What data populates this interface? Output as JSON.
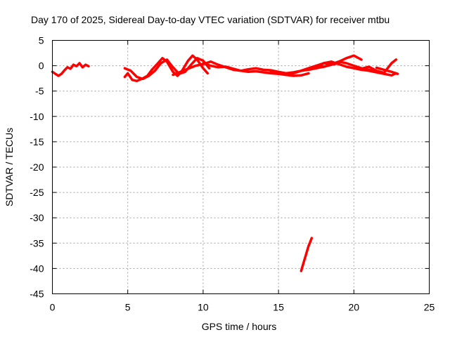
{
  "chart_data": {
    "type": "scatter",
    "title": "Day 170 of 2025, Sidereal Day-to-day VTEC variation (SDTVAR) for receiver mtbu",
    "xlabel": "GPS time / hours",
    "ylabel": "SDTVAR / TECUs",
    "xlim": [
      0,
      25
    ],
    "ylim": [
      -45,
      5
    ],
    "xticks": [
      "0",
      "5",
      "10",
      "15",
      "20",
      "25"
    ],
    "yticks": [
      "5",
      "0",
      "-5",
      "-10",
      "-15",
      "-20",
      "-25",
      "-30",
      "-35",
      "-40",
      "-45"
    ],
    "grid": true,
    "series_color": "#ff0000",
    "series": [
      {
        "x": [
          0.0,
          0.2,
          0.4,
          0.6,
          0.8,
          1.0,
          1.2,
          1.4,
          1.6,
          1.8,
          2.0,
          2.2,
          2.4
        ],
        "y": [
          -1.2,
          -1.6,
          -2.0,
          -1.6,
          -0.9,
          -0.3,
          -0.6,
          0.2,
          -0.1,
          0.5,
          -0.3,
          0.2,
          -0.1
        ]
      },
      {
        "x": [
          4.8,
          5.0,
          5.3,
          5.6,
          6.0,
          6.3,
          6.6,
          7.0,
          7.3,
          7.6,
          8.0,
          8.3,
          8.6,
          9.0,
          9.3,
          9.6,
          10.0,
          10.3
        ],
        "y": [
          -2.2,
          -1.5,
          -2.8,
          -3.0,
          -2.5,
          -2.0,
          -0.8,
          0.5,
          1.5,
          0.8,
          -1.2,
          -2.0,
          -1.0,
          1.0,
          2.0,
          1.2,
          -0.5,
          -1.5
        ]
      },
      {
        "x": [
          4.8,
          5.2,
          5.6,
          6.0,
          6.4,
          6.8,
          7.2,
          7.6,
          8.0,
          8.4,
          8.8,
          9.2,
          9.6,
          10.0,
          10.4
        ],
        "y": [
          -0.5,
          -1.0,
          -2.2,
          -2.6,
          -2.0,
          -1.0,
          0.5,
          1.2,
          -0.3,
          -1.6,
          -1.2,
          0.2,
          1.5,
          1.0,
          -0.5
        ]
      },
      {
        "x": [
          8.0,
          8.5,
          9.0,
          9.5,
          10.0,
          10.5,
          11.0,
          11.5,
          12.0,
          12.5,
          13.0,
          13.5,
          14.0,
          14.5,
          15.0,
          15.5,
          16.0,
          16.5,
          17.0
        ],
        "y": [
          -1.8,
          -1.2,
          -0.6,
          0.0,
          0.3,
          0.8,
          0.2,
          -0.3,
          -0.8,
          -1.0,
          -1.2,
          -1.1,
          -1.3,
          -1.5,
          -1.6,
          -1.8,
          -2.0,
          -1.9,
          -1.5
        ]
      },
      {
        "x": [
          10.0,
          10.5,
          11.0,
          11.5,
          12.0,
          12.5,
          13.0,
          13.5,
          14.0,
          14.5,
          15.0,
          15.5,
          16.0,
          16.5,
          17.0,
          17.5,
          18.0,
          18.5,
          19.0
        ],
        "y": [
          0.5,
          0.0,
          -0.3,
          -0.2,
          -0.6,
          -1.0,
          -0.7,
          -0.5,
          -0.8,
          -0.9,
          -1.2,
          -1.5,
          -1.3,
          -1.0,
          -0.8,
          -0.5,
          -0.2,
          0.2,
          0.5
        ]
      },
      {
        "x": [
          14.5,
          15.0,
          15.5,
          16.0,
          16.5,
          17.0,
          17.5,
          18.0,
          18.5,
          19.0,
          19.5,
          20.0,
          20.5
        ],
        "y": [
          -1.2,
          -1.5,
          -1.8,
          -1.5,
          -1.0,
          -0.5,
          0.0,
          0.5,
          0.3,
          0.8,
          1.5,
          2.0,
          1.2
        ]
      },
      {
        "x": [
          16.5,
          17.0,
          17.5,
          18.0,
          18.5,
          19.0,
          19.5,
          20.0,
          20.5,
          21.0,
          21.5,
          22.0
        ],
        "y": [
          -1.0,
          -0.5,
          0.0,
          -0.2,
          0.2,
          0.8,
          0.5,
          0.0,
          -0.5,
          -0.8,
          -1.2,
          -1.5
        ]
      },
      {
        "x": [
          17.5,
          18.0,
          18.5,
          19.0,
          19.5,
          20.0,
          20.5,
          21.0,
          21.5,
          22.0,
          22.5,
          22.8
        ],
        "y": [
          -0.5,
          0.5,
          0.8,
          0.3,
          -0.2,
          -0.5,
          -0.8,
          -1.0,
          -1.3,
          -1.6,
          -1.9,
          -1.5
        ]
      },
      {
        "x": [
          20.5,
          21.0,
          21.5,
          22.0,
          22.5,
          22.8
        ],
        "y": [
          -0.6,
          -0.2,
          -1.0,
          -1.4,
          0.5,
          1.2
        ]
      },
      {
        "x": [
          21.5,
          22.0,
          22.5,
          22.9
        ],
        "y": [
          -0.4,
          -0.8,
          -1.2,
          -1.6
        ]
      },
      {
        "x": [
          16.5,
          16.6,
          16.7,
          16.8,
          16.9,
          17.0,
          17.1,
          17.2
        ],
        "y": [
          -40.5,
          -39.5,
          -38.5,
          -37.5,
          -36.5,
          -35.5,
          -34.8,
          -34.0
        ]
      }
    ]
  }
}
